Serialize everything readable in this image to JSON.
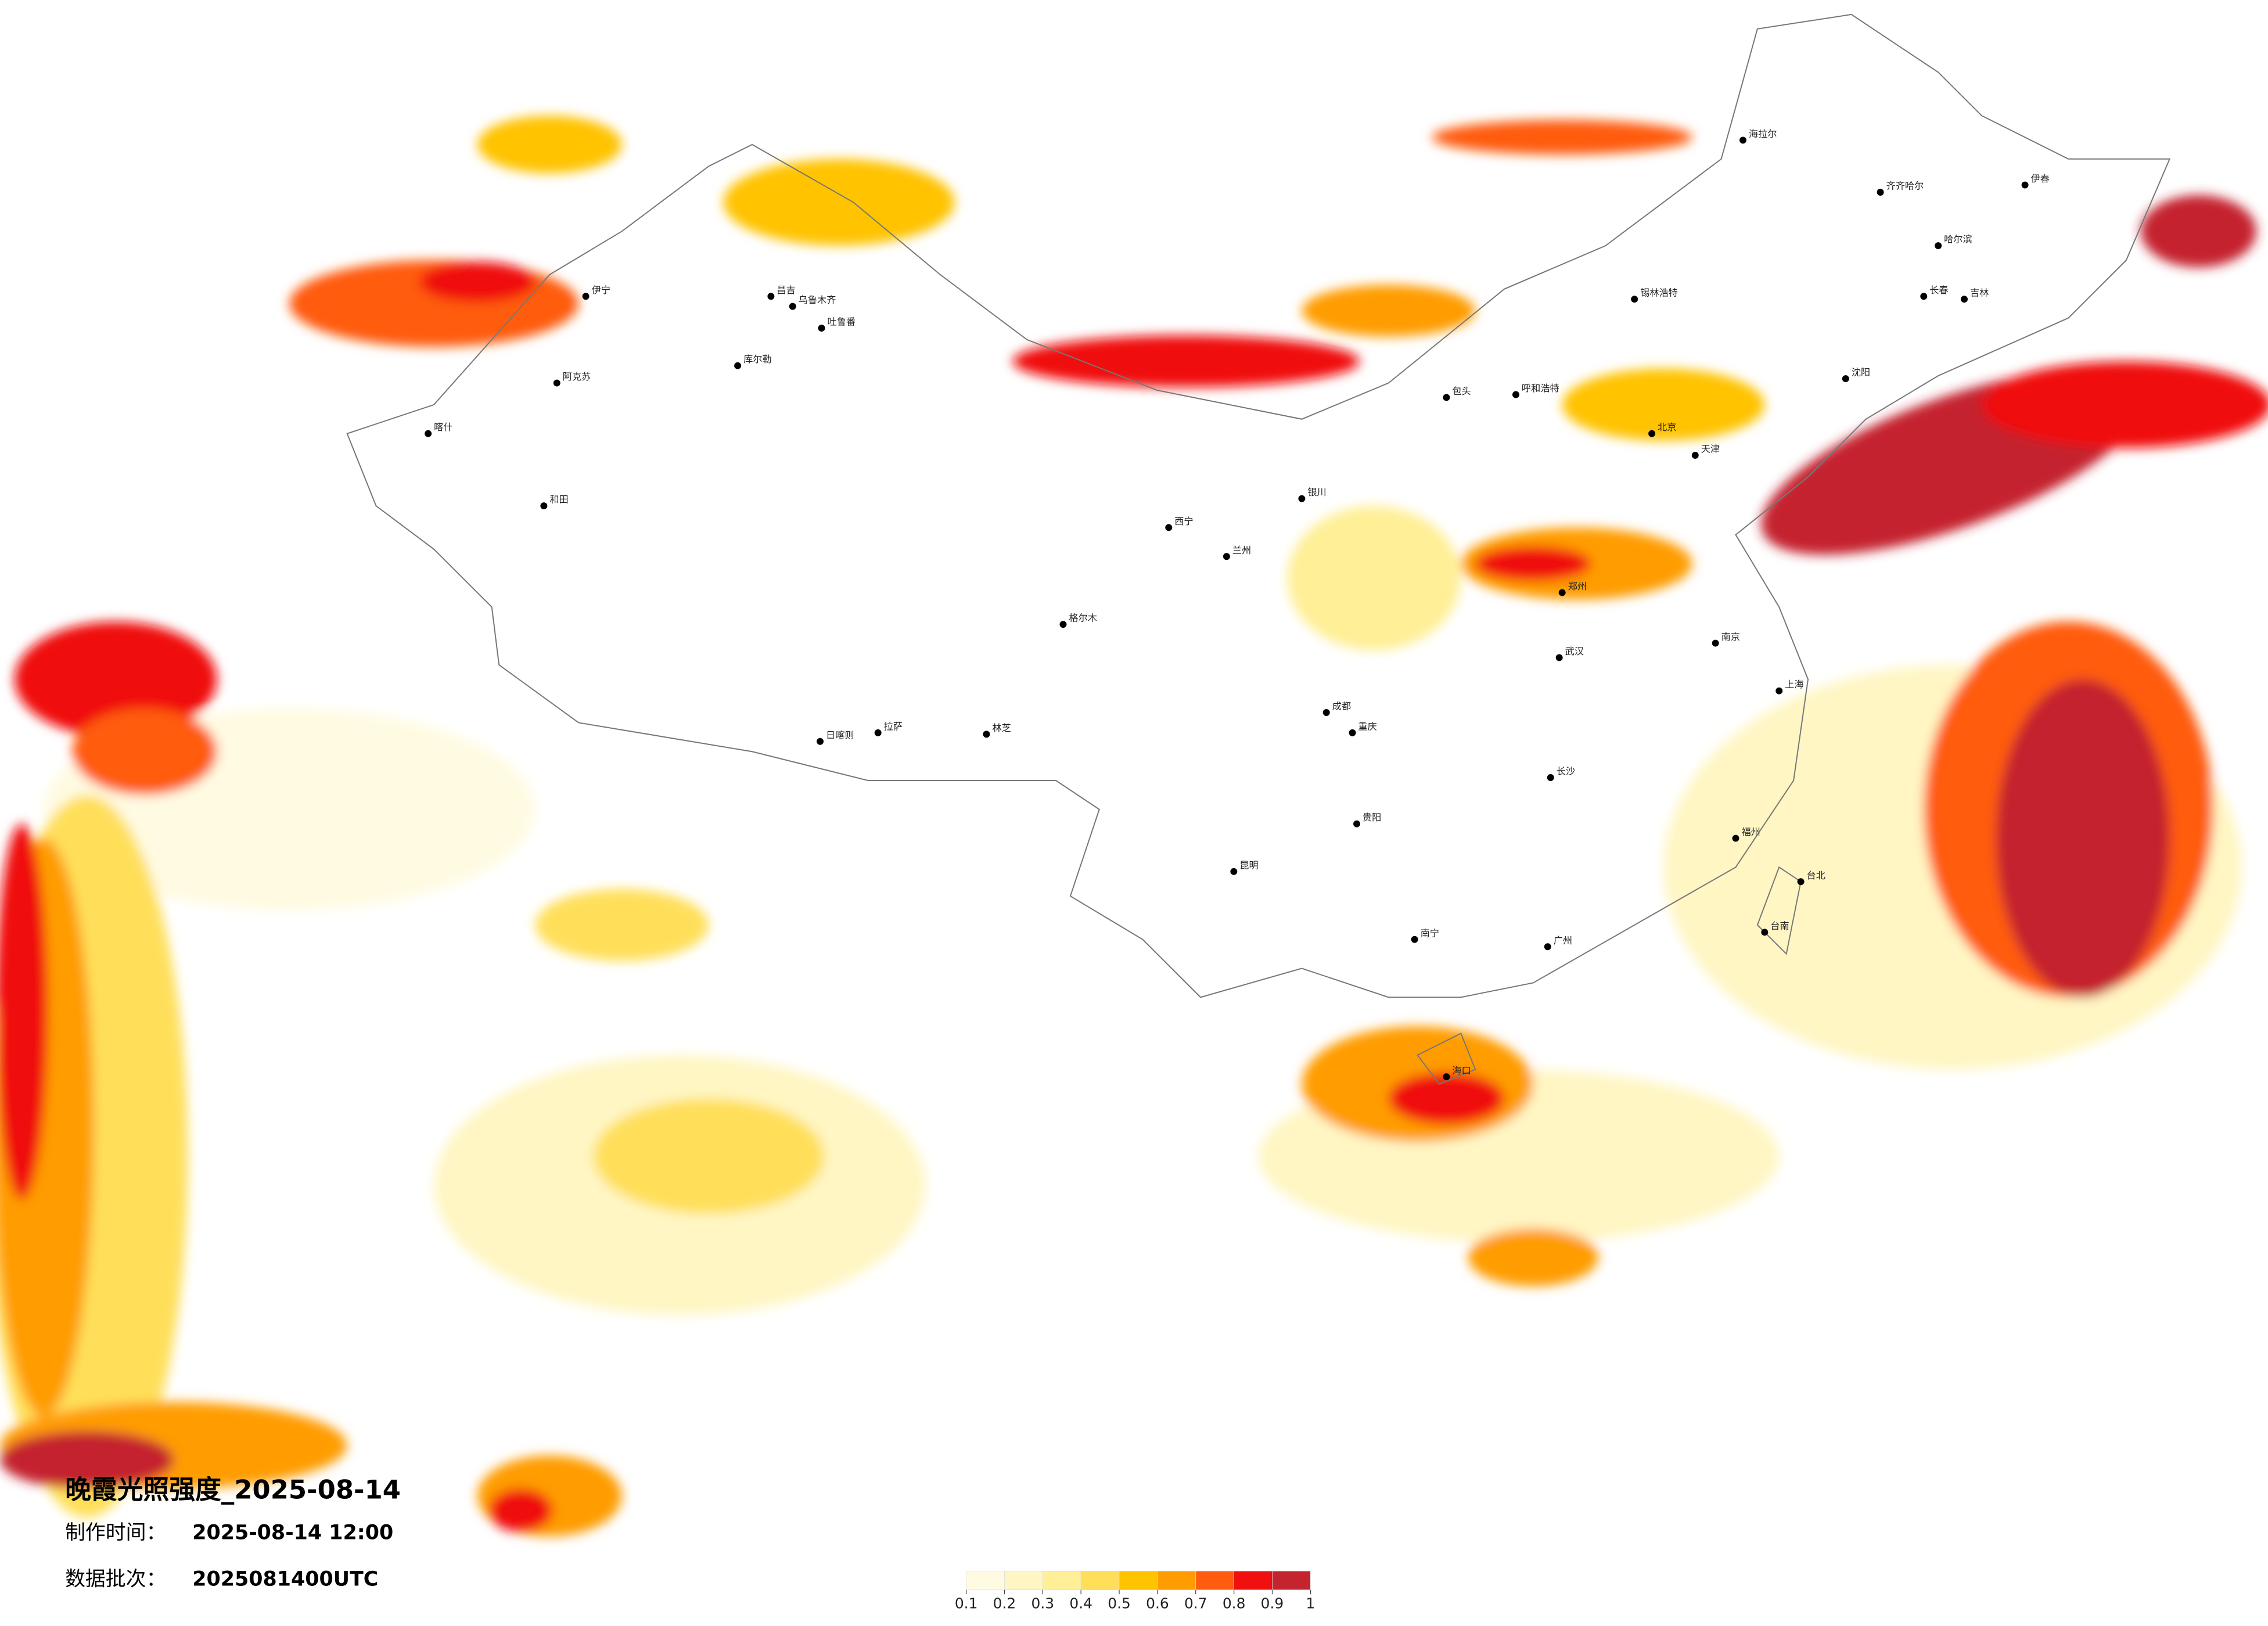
{
  "title": "晚霞光照强度_2025-08-14",
  "made_label": "制作时间：",
  "made_value": "2025-08-14 12:00",
  "batch_label": "数据批次：",
  "batch_value": "2025081400UTC",
  "colorbar": {
    "ticks": [
      0.1,
      0.2,
      0.3,
      0.4,
      0.5,
      0.6,
      0.7,
      0.8,
      0.9,
      1
    ],
    "colors": [
      "#fffbe2",
      "#fff6c4",
      "#ffef96",
      "#ffdf5a",
      "#ffc300",
      "#ff9c00",
      "#ff5c10",
      "#f01010",
      "#c4242e"
    ]
  },
  "cities": [
    "伊宁",
    "昌吉",
    "乌鲁木齐",
    "吐鲁番",
    "库尔勒",
    "阿克苏",
    "和田",
    "喀什",
    "日喀则",
    "拉萨",
    "林芝",
    "格尔木",
    "西宁",
    "兰州",
    "银川",
    "成都",
    "重庆",
    "昆明",
    "贵阳",
    "南宁",
    "海口",
    "广州",
    "长沙",
    "武汉",
    "郑州",
    "南京",
    "上海",
    "福州",
    "北京",
    "天津",
    "沈阳",
    "长春",
    "吉林",
    "哈尔滨",
    "齐齐哈尔",
    "海拉尔",
    "伊春",
    "锡林浩特",
    "呼和浩特",
    "包头",
    "台南",
    "台北"
  ]
}
